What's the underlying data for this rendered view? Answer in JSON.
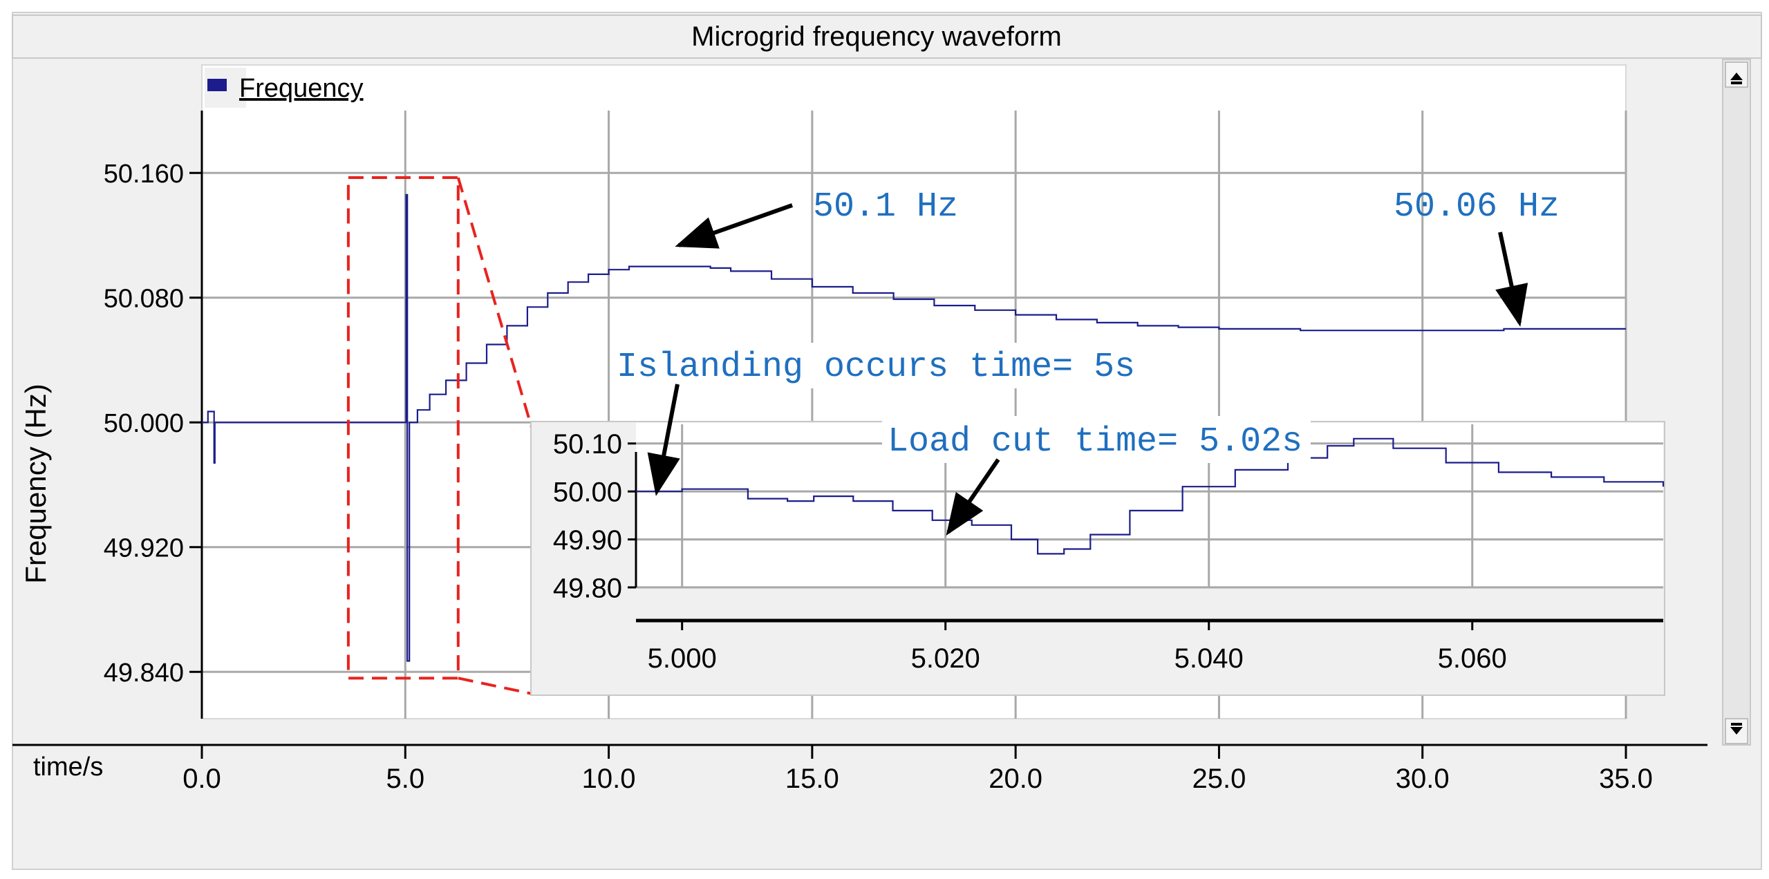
{
  "window": {
    "title": "Microgrid frequency waveform",
    "scroll_up_icon": "arrow-up-icon",
    "scroll_down_icon": "arrow-down-icon"
  },
  "colors": {
    "panel": "#f0f0f0",
    "plot_bg": "#ffffff",
    "grid": "#a8a8a8",
    "series": "#1c1c8c",
    "annotation": "#1f6fbf",
    "zoom_box": "#e8231f"
  },
  "chart_data": [
    {
      "id": "main",
      "type": "line",
      "title": "Microgrid frequency waveform",
      "legend": [
        "Frequency"
      ],
      "legend_position": "top-left",
      "xlabel": "time/s",
      "ylabel": "Frequency (Hz)",
      "xlim": [
        0.0,
        35.0
      ],
      "ylim": [
        49.81,
        50.2
      ],
      "xticks": [
        0.0,
        5.0,
        10.0,
        15.0,
        20.0,
        25.0,
        30.0,
        35.0
      ],
      "xtick_labels": [
        "0.0",
        "5.0",
        "10.0",
        "15.0",
        "20.0",
        "25.0",
        "30.0",
        "35.0"
      ],
      "yticks": [
        50.16,
        50.08,
        50.0,
        49.92,
        49.84
      ],
      "ytick_labels": [
        "50.160",
        "50.080",
        "50.000",
        "49.920",
        "49.840"
      ],
      "grid": true,
      "series": [
        {
          "name": "Frequency",
          "x": [
            0.0,
            0.1,
            0.15,
            0.3,
            0.32,
            0.5,
            1.0,
            2.0,
            3.0,
            4.0,
            4.9,
            5.0,
            5.02,
            5.05,
            5.1,
            5.3,
            5.6,
            6.0,
            6.5,
            7.0,
            7.5,
            8.0,
            8.5,
            9.0,
            9.5,
            10.0,
            10.5,
            11.0,
            11.5,
            12.0,
            12.5,
            13.0,
            14.0,
            15.0,
            16.0,
            17.0,
            18.0,
            19.0,
            20.0,
            21.0,
            22.0,
            23.0,
            24.0,
            25.0,
            26.0,
            27.0,
            28.0,
            29.0,
            30.0,
            31.0,
            32.0,
            33.0,
            34.0,
            35.0
          ],
          "y": [
            50.0,
            50.0,
            50.007,
            49.974,
            50.0,
            50.0,
            50.0,
            50.0,
            50.0,
            50.0,
            50.0,
            50.0,
            50.146,
            49.847,
            50.0,
            50.008,
            50.018,
            50.027,
            50.038,
            50.05,
            50.062,
            50.074,
            50.083,
            50.09,
            50.095,
            50.098,
            50.1,
            50.1,
            50.1,
            50.1,
            50.099,
            50.097,
            50.092,
            50.087,
            50.083,
            50.079,
            50.075,
            50.072,
            50.069,
            50.066,
            50.064,
            50.062,
            50.061,
            50.06,
            50.06,
            50.059,
            50.059,
            50.059,
            50.059,
            50.059,
            50.06,
            50.06,
            50.06,
            50.06
          ]
        }
      ],
      "annotations": [
        {
          "text": "50.1 Hz",
          "x": 11.5,
          "y": 50.1
        },
        {
          "text": "50.06 Hz",
          "x": 32.3,
          "y": 50.06
        },
        {
          "text": "Islanding occurs time= 5s",
          "x": 5.0,
          "y": 50.0
        },
        {
          "text": "Load cut time= 5.02s",
          "x": 5.023,
          "y": 49.93
        }
      ],
      "zoom_region": {
        "x": [
          3.6,
          6.3
        ],
        "y": [
          49.836,
          50.157
        ]
      }
    },
    {
      "id": "inset",
      "type": "line",
      "xlim": [
        4.9965,
        5.0745
      ],
      "ylim": [
        49.8,
        50.14
      ],
      "xticks": [
        5.0,
        5.02,
        5.04,
        5.06
      ],
      "xtick_labels": [
        "5.000",
        "5.020",
        "5.040",
        "5.060"
      ],
      "yticks": [
        50.1,
        50.0,
        49.9,
        49.8
      ],
      "ytick_labels": [
        "50.10",
        "50.00",
        "49.90",
        "49.80"
      ],
      "grid": true,
      "series": [
        {
          "name": "Frequency",
          "x": [
            4.9965,
            5.0,
            5.003,
            5.005,
            5.008,
            5.01,
            5.013,
            5.016,
            5.019,
            5.022,
            5.0235,
            5.025,
            5.027,
            5.029,
            5.031,
            5.034,
            5.038,
            5.042,
            5.046,
            5.049,
            5.051,
            5.054,
            5.058,
            5.062,
            5.066,
            5.07,
            5.0745
          ],
          "y": [
            50.0,
            50.005,
            50.005,
            49.985,
            49.98,
            49.99,
            49.98,
            49.96,
            49.94,
            49.93,
            49.93,
            49.9,
            49.87,
            49.88,
            49.91,
            49.96,
            50.01,
            50.045,
            50.07,
            50.095,
            50.11,
            50.09,
            50.06,
            50.04,
            50.03,
            50.02,
            50.01
          ]
        }
      ]
    }
  ]
}
